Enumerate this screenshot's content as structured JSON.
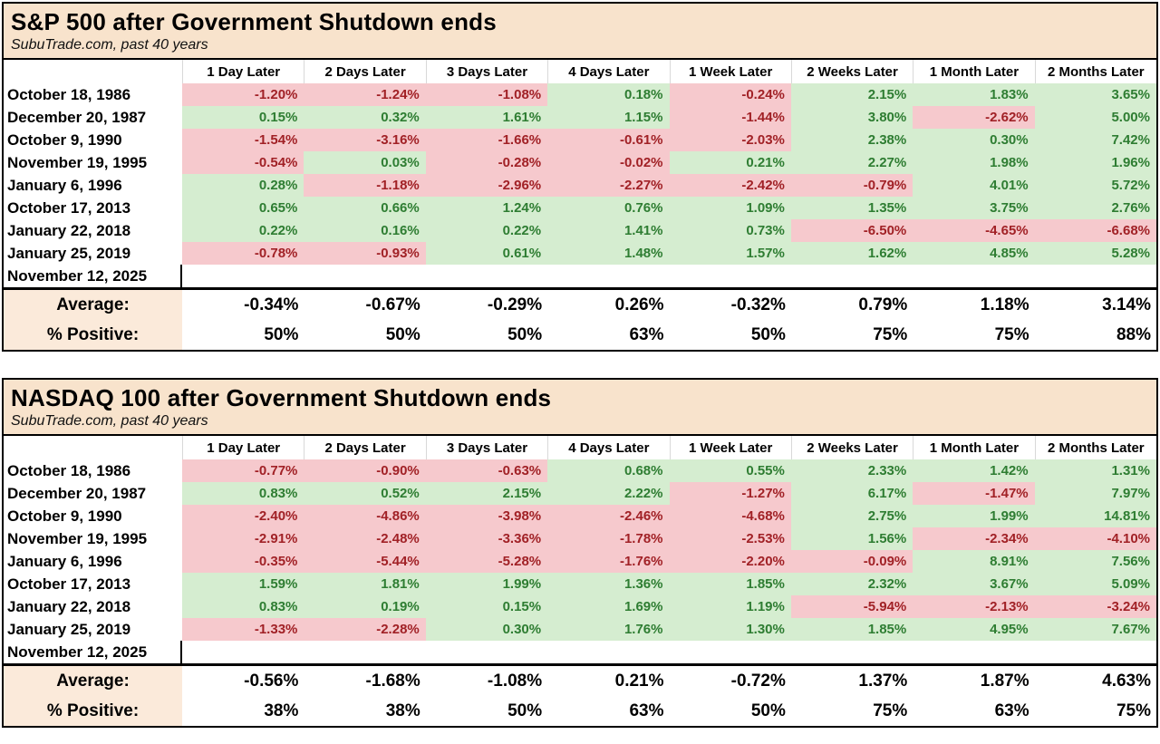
{
  "colors": {
    "title_bg": "#F8E3CC",
    "summary_label_bg": "#FBEADA",
    "positive_bg": "#D5EDD0",
    "positive_text": "#2E7D32",
    "negative_bg": "#F6C9CD",
    "negative_text": "#A12126",
    "border": "#000000"
  },
  "columns": [
    "1 Day Later",
    "2 Days Later",
    "3 Days Later",
    "4 Days Later",
    "1 Week Later",
    "2 Weeks Later",
    "1 Month Later",
    "2 Months Later"
  ],
  "tables": [
    {
      "title": "S&P 500 after Government Shutdown ends",
      "subtitle": "SubuTrade.com, past 40 years",
      "rows": [
        {
          "date": "October 18, 1986",
          "values": [
            "-1.20%",
            "-1.24%",
            "-1.08%",
            "0.18%",
            "-0.24%",
            "2.15%",
            "1.83%",
            "3.65%"
          ]
        },
        {
          "date": "December 20, 1987",
          "values": [
            "0.15%",
            "0.32%",
            "1.61%",
            "1.15%",
            "-1.44%",
            "3.80%",
            "-2.62%",
            "5.00%"
          ]
        },
        {
          "date": "October 9, 1990",
          "values": [
            "-1.54%",
            "-3.16%",
            "-1.66%",
            "-0.61%",
            "-2.03%",
            "2.38%",
            "0.30%",
            "7.42%"
          ]
        },
        {
          "date": "November 19, 1995",
          "values": [
            "-0.54%",
            "0.03%",
            "-0.28%",
            "-0.02%",
            "0.21%",
            "2.27%",
            "1.98%",
            "1.96%"
          ]
        },
        {
          "date": "January 6, 1996",
          "values": [
            "0.28%",
            "-1.18%",
            "-2.96%",
            "-2.27%",
            "-2.42%",
            "-0.79%",
            "4.01%",
            "5.72%"
          ]
        },
        {
          "date": "October 17, 2013",
          "values": [
            "0.65%",
            "0.66%",
            "1.24%",
            "0.76%",
            "1.09%",
            "1.35%",
            "3.75%",
            "2.76%"
          ]
        },
        {
          "date": "January 22, 2018",
          "values": [
            "0.22%",
            "0.16%",
            "0.22%",
            "1.41%",
            "0.73%",
            "-6.50%",
            "-4.65%",
            "-6.68%"
          ]
        },
        {
          "date": "January 25, 2019",
          "values": [
            "-0.78%",
            "-0.93%",
            "0.61%",
            "1.48%",
            "1.57%",
            "1.62%",
            "4.85%",
            "5.28%"
          ]
        },
        {
          "date": "November 12, 2025",
          "values": [
            "",
            "",
            "",
            "",
            "",
            "",
            "",
            ""
          ]
        }
      ],
      "average_label": "Average:",
      "average": [
        "-0.34%",
        "-0.67%",
        "-0.29%",
        "0.26%",
        "-0.32%",
        "0.79%",
        "1.18%",
        "3.14%"
      ],
      "positive_label": "% Positive:",
      "positive": [
        "50%",
        "50%",
        "50%",
        "63%",
        "50%",
        "75%",
        "75%",
        "88%"
      ]
    },
    {
      "title": "NASDAQ 100 after Government Shutdown ends",
      "subtitle": "SubuTrade.com, past 40 years",
      "rows": [
        {
          "date": "October 18, 1986",
          "values": [
            "-0.77%",
            "-0.90%",
            "-0.63%",
            "0.68%",
            "0.55%",
            "2.33%",
            "1.42%",
            "1.31%"
          ]
        },
        {
          "date": "December 20, 1987",
          "values": [
            "0.83%",
            "0.52%",
            "2.15%",
            "2.22%",
            "-1.27%",
            "6.17%",
            "-1.47%",
            "7.97%"
          ]
        },
        {
          "date": "October 9, 1990",
          "values": [
            "-2.40%",
            "-4.86%",
            "-3.98%",
            "-2.46%",
            "-4.68%",
            "2.75%",
            "1.99%",
            "14.81%"
          ]
        },
        {
          "date": "November 19, 1995",
          "values": [
            "-2.91%",
            "-2.48%",
            "-3.36%",
            "-1.78%",
            "-2.53%",
            "1.56%",
            "-2.34%",
            "-4.10%"
          ]
        },
        {
          "date": "January 6, 1996",
          "values": [
            "-0.35%",
            "-5.44%",
            "-5.28%",
            "-1.76%",
            "-2.20%",
            "-0.09%",
            "8.91%",
            "7.56%"
          ]
        },
        {
          "date": "October 17, 2013",
          "values": [
            "1.59%",
            "1.81%",
            "1.99%",
            "1.36%",
            "1.85%",
            "2.32%",
            "3.67%",
            "5.09%"
          ]
        },
        {
          "date": "January 22, 2018",
          "values": [
            "0.83%",
            "0.19%",
            "0.15%",
            "1.69%",
            "1.19%",
            "-5.94%",
            "-2.13%",
            "-3.24%"
          ]
        },
        {
          "date": "January 25, 2019",
          "values": [
            "-1.33%",
            "-2.28%",
            "0.30%",
            "1.76%",
            "1.30%",
            "1.85%",
            "4.95%",
            "7.67%"
          ]
        },
        {
          "date": "November 12, 2025",
          "values": [
            "",
            "",
            "",
            "",
            "",
            "",
            "",
            ""
          ]
        }
      ],
      "average_label": "Average:",
      "average": [
        "-0.56%",
        "-1.68%",
        "-1.08%",
        "0.21%",
        "-0.72%",
        "1.37%",
        "1.87%",
        "4.63%"
      ],
      "positive_label": "% Positive:",
      "positive": [
        "38%",
        "38%",
        "50%",
        "63%",
        "50%",
        "75%",
        "63%",
        "75%"
      ]
    }
  ]
}
